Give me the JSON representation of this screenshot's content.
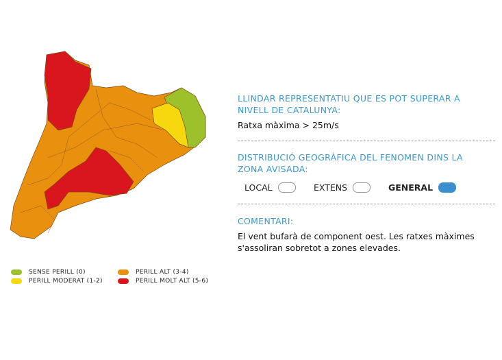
{
  "map": {
    "legend": [
      {
        "label": "SENSE PERILL (0)",
        "color": "#9dc12a"
      },
      {
        "label": "PERILL MODERAT (1-2)",
        "color": "#f5d90e"
      },
      {
        "label": "PERILL ALT (3-4)",
        "color": "#ea900f"
      },
      {
        "label": "PERILL MOLT ALT (5-6)",
        "color": "#d9161e"
      }
    ]
  },
  "threshold": {
    "title": "LLINDAR REPRESENTATIU QUE ES POT SUPERAR A NIVELL DE CATALUNYA:",
    "text": "Ratxa màxima > 25m/s"
  },
  "distribution": {
    "title": "DISTRIBUCIÓ GEOGRÀFICA DEL FENOMEN DINS LA ZONA AVISADA:",
    "options": [
      {
        "label": "LOCAL",
        "selected": false
      },
      {
        "label": "EXTENS",
        "selected": false
      },
      {
        "label": "GENERAL",
        "selected": true
      }
    ]
  },
  "comment": {
    "title": "COMENTARI:",
    "text": "El vent bufarà de component oest. Les ratxes màximes s'assoliran sobretot a zones elevades."
  }
}
